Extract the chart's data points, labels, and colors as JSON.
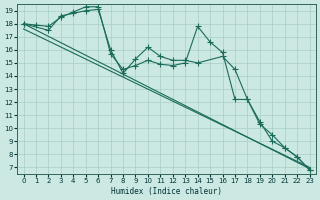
{
  "xlabel": "Humidex (Indice chaleur)",
  "bg_color": "#cce8e3",
  "grid_color": "#a8cfc4",
  "line_color": "#1a6b5a",
  "xlim": [
    -0.5,
    23.5
  ],
  "ylim": [
    6.5,
    19.5
  ],
  "xticks": [
    0,
    1,
    2,
    3,
    4,
    5,
    6,
    7,
    8,
    9,
    10,
    11,
    12,
    13,
    14,
    15,
    16,
    17,
    18,
    19,
    20,
    21,
    22,
    23
  ],
  "yticks": [
    7,
    8,
    9,
    10,
    11,
    12,
    13,
    14,
    15,
    16,
    17,
    18,
    19
  ],
  "line1_x": [
    0,
    1,
    2,
    3,
    4,
    5,
    6,
    7,
    8,
    9,
    10,
    11,
    12,
    13,
    14,
    15,
    16,
    17,
    18,
    19,
    20,
    21,
    22,
    23
  ],
  "line1_y": [
    18,
    17.9,
    17.8,
    18.5,
    18.9,
    19.3,
    19.3,
    15.7,
    14.5,
    14.8,
    15.2,
    14.9,
    14.8,
    15.0,
    17.8,
    16.6,
    15.8,
    12.2,
    12.2,
    10.3,
    9.5,
    8.5,
    7.8,
    6.8
  ],
  "line2_x": [
    0,
    2,
    3,
    4,
    5,
    6,
    7,
    8,
    9,
    10,
    11,
    12,
    13,
    14,
    16,
    17,
    18,
    19,
    20,
    21,
    22,
    23
  ],
  "line2_y": [
    18,
    17.5,
    18.6,
    18.8,
    19.0,
    19.1,
    16.0,
    14.2,
    15.3,
    16.2,
    15.5,
    15.2,
    15.2,
    15.0,
    15.5,
    14.5,
    12.2,
    10.5,
    9.0,
    8.5,
    7.8,
    6.8
  ],
  "trend1_x": [
    0,
    23
  ],
  "trend1_y": [
    18.0,
    6.9
  ],
  "trend2_x": [
    0,
    23
  ],
  "trend2_y": [
    17.6,
    7.0
  ]
}
